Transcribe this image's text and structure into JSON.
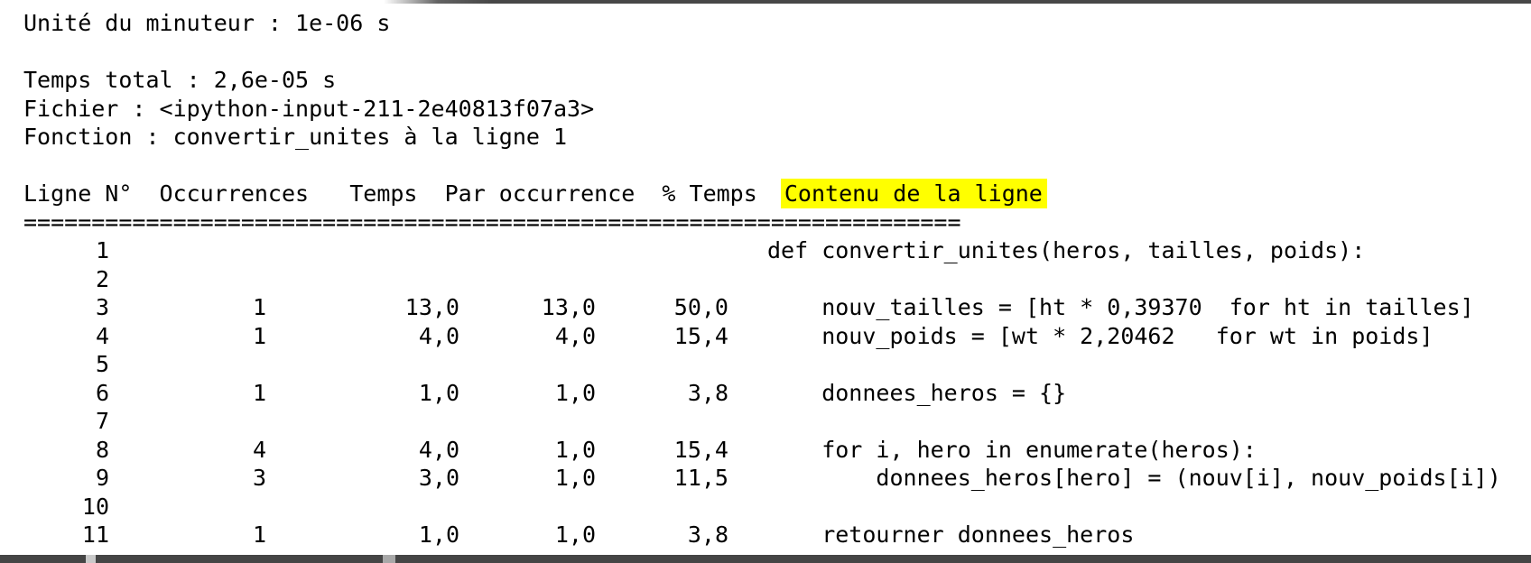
{
  "meta": {
    "timer_unit": "Unité du minuteur : 1e-06 s",
    "total_time": "Temps total : 2,6e-05 s",
    "file": "Fichier : <ipython-input-211-2e40813f07a3>",
    "function": "Fonction : convertir_unites à la ligne 1"
  },
  "table": {
    "columns": [
      "Ligne N°",
      "Occurrences",
      "Temps",
      "Par occurrence",
      "% Temps",
      "Contenu de la ligne"
    ],
    "header_plain": "Ligne N°  Occurrences   Temps  Par occurrence  % Temps  ",
    "header_highlight": "Contenu de la ligne",
    "separator": "=====================================================================",
    "rows": [
      {
        "line": "1",
        "hits": "",
        "time": "",
        "per_hit": "",
        "pct": "",
        "content": "def convertir_unites(heros, tailles, poids):"
      },
      {
        "line": "2",
        "hits": "",
        "time": "",
        "per_hit": "",
        "pct": "",
        "content": ""
      },
      {
        "line": "3",
        "hits": "1",
        "time": "13,0",
        "per_hit": "13,0",
        "pct": "50,0",
        "content": "    nouv_tailles = [ht * 0,39370  for ht in tailles]"
      },
      {
        "line": "4",
        "hits": "1",
        "time": "4,0",
        "per_hit": "4,0",
        "pct": "15,4",
        "content": "    nouv_poids = [wt * 2,20462   for wt in poids]"
      },
      {
        "line": "5",
        "hits": "",
        "time": "",
        "per_hit": "",
        "pct": "",
        "content": ""
      },
      {
        "line": "6",
        "hits": "1",
        "time": "1,0",
        "per_hit": "1,0",
        "pct": "3,8",
        "content": "    donnees_heros = {}"
      },
      {
        "line": "7",
        "hits": "",
        "time": "",
        "per_hit": "",
        "pct": "",
        "content": ""
      },
      {
        "line": "8",
        "hits": "4",
        "time": "4,0",
        "per_hit": "1,0",
        "pct": "15,4",
        "content": "    for i, hero in enumerate(heros):"
      },
      {
        "line": "9",
        "hits": "3",
        "time": "3,0",
        "per_hit": "1,0",
        "pct": "11,5",
        "content": "        donnees_heros[hero] = (nouv[i], nouv_poids[i])"
      },
      {
        "line": "10",
        "hits": "",
        "time": "",
        "per_hit": "",
        "pct": "",
        "content": ""
      },
      {
        "line": "11",
        "hits": "1",
        "time": "1,0",
        "per_hit": "1,0",
        "pct": "3,8",
        "content": "    retourner donnees_heros"
      }
    ]
  },
  "colors": {
    "highlight": "#ffff00",
    "text": "#000000",
    "background": "#ffffff",
    "window_edge": "#474747"
  }
}
